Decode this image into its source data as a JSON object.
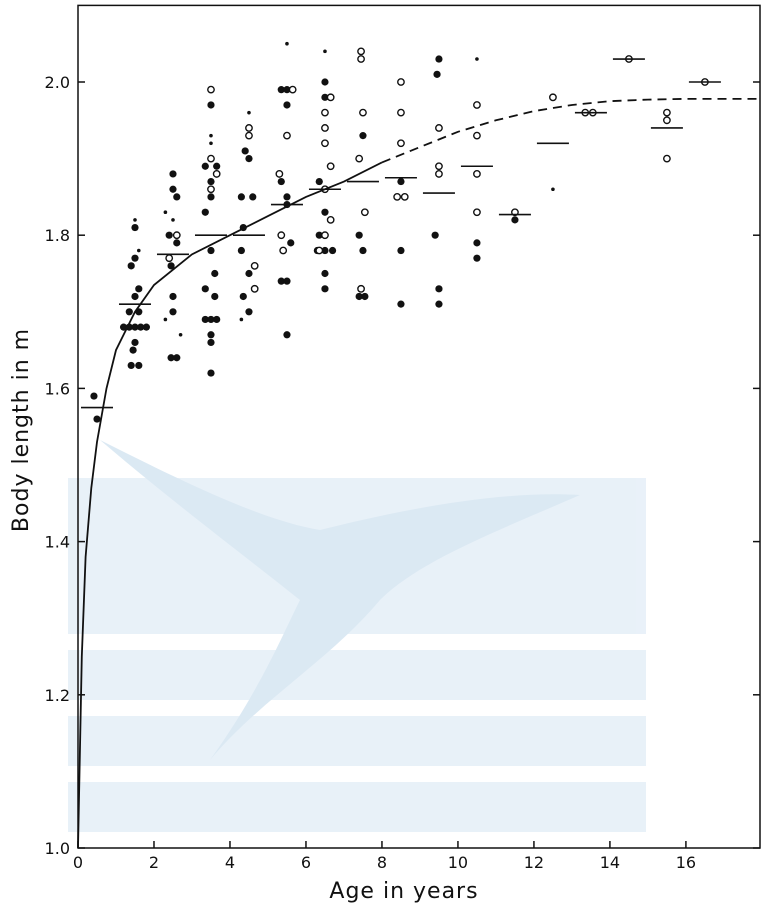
{
  "chart_data": {
    "type": "scatter",
    "xlabel": "Age in years",
    "ylabel": "Body length in m",
    "xlim": [
      0,
      17.95
    ],
    "ylim": [
      1.0,
      2.1
    ],
    "xticks": [
      0,
      2,
      4,
      6,
      8,
      10,
      12,
      14,
      16
    ],
    "yticks": [
      {
        "value": 1.0,
        "label": "1.0"
      },
      {
        "value": 1.2,
        "label": "1.2"
      },
      {
        "value": 1.4,
        "label": "1.4"
      },
      {
        "value": 1.6,
        "label": "1.6"
      },
      {
        "value": 1.8,
        "label": "1.8"
      },
      {
        "value": 2.0,
        "label": "2.0"
      }
    ],
    "series": [
      {
        "marker": "filled",
        "color": "#111111",
        "x": [
          0.42,
          0.5,
          1.2,
          1.35,
          1.5,
          1.65,
          1.8,
          1.5,
          1.5,
          1.4,
          1.6,
          1.5,
          1.35,
          1.6,
          1.45,
          1.4,
          1.6,
          1.5,
          2.5,
          2.5,
          2.6,
          2.4,
          2.6,
          2.45,
          2.5,
          2.5,
          2.45,
          2.6,
          3.35,
          3.5,
          3.65,
          3.5,
          3.5,
          3.35,
          3.5,
          3.6,
          3.35,
          3.6,
          3.35,
          3.5,
          3.65,
          3.5,
          3.5,
          3.5,
          4.5,
          4.4,
          4.5,
          4.3,
          4.6,
          4.35,
          4.3,
          4.5,
          4.35,
          4.5,
          5.35,
          5.5,
          5.5,
          5.35,
          5.5,
          5.5,
          5.6,
          5.35,
          5.5,
          5.5,
          6.5,
          6.5,
          6.35,
          6.5,
          6.35,
          6.3,
          6.5,
          6.7,
          6.5,
          6.5,
          7.5,
          7.4,
          7.5,
          7.4,
          7.55,
          8.5,
          8.5,
          8.5,
          9.5,
          9.45,
          9.4,
          9.5,
          9.5,
          10.5,
          10.5,
          11.5
        ],
        "values": [
          1.59,
          1.56,
          1.68,
          1.68,
          1.68,
          1.68,
          1.68,
          1.81,
          1.77,
          1.76,
          1.73,
          1.72,
          1.7,
          1.7,
          1.65,
          1.63,
          1.63,
          1.66,
          1.88,
          1.86,
          1.85,
          1.8,
          1.79,
          1.76,
          1.72,
          1.7,
          1.64,
          1.64,
          1.89,
          1.97,
          1.89,
          1.87,
          1.85,
          1.83,
          1.78,
          1.75,
          1.73,
          1.72,
          1.69,
          1.69,
          1.69,
          1.67,
          1.66,
          1.62,
          1.94,
          1.91,
          1.9,
          1.85,
          1.85,
          1.81,
          1.78,
          1.75,
          1.72,
          1.7,
          1.99,
          1.99,
          1.97,
          1.87,
          1.85,
          1.84,
          1.79,
          1.74,
          1.74,
          1.67,
          2.0,
          1.98,
          1.87,
          1.83,
          1.8,
          1.78,
          1.78,
          1.78,
          1.75,
          1.73,
          1.93,
          1.8,
          1.78,
          1.72,
          1.72,
          1.87,
          1.78,
          1.71,
          2.03,
          2.01,
          1.8,
          1.73,
          1.71,
          1.79,
          1.77,
          1.82
        ]
      },
      {
        "marker": "open",
        "color": "#111111",
        "x": [
          2.6,
          2.4,
          3.5,
          3.5,
          3.65,
          3.5,
          4.5,
          4.5,
          4.65,
          4.65,
          5.5,
          5.65,
          5.3,
          5.35,
          5.4,
          6.65,
          6.5,
          6.5,
          6.5,
          6.65,
          6.5,
          6.65,
          6.5,
          6.35,
          7.45,
          7.45,
          7.5,
          7.4,
          7.55,
          7.45,
          8.5,
          8.5,
          8.5,
          8.4,
          8.6,
          9.5,
          9.5,
          9.5,
          10.5,
          10.5,
          10.5,
          10.5,
          11.5,
          12.5,
          13.35,
          13.55,
          14.5,
          15.5,
          15.5,
          15.5,
          16.5
        ],
        "values": [
          1.8,
          1.77,
          1.99,
          1.9,
          1.88,
          1.86,
          1.94,
          1.93,
          1.76,
          1.73,
          1.93,
          1.99,
          1.88,
          1.8,
          1.78,
          1.98,
          1.96,
          1.94,
          1.92,
          1.89,
          1.86,
          1.82,
          1.8,
          1.78,
          2.04,
          2.03,
          1.96,
          1.9,
          1.83,
          1.73,
          2.0,
          1.96,
          1.92,
          1.85,
          1.85,
          1.94,
          1.89,
          1.88,
          1.97,
          1.93,
          1.88,
          1.83,
          1.83,
          1.98,
          1.96,
          1.96,
          2.03,
          1.96,
          1.95,
          1.9,
          2.0
        ]
      },
      {
        "marker": "dot",
        "color": "#111111",
        "x": [
          1.5,
          1.6,
          2.3,
          2.5,
          2.3,
          2.7,
          3.5,
          3.5,
          4.5,
          4.3,
          5.5,
          5.5,
          6.5,
          10.5,
          12.5
        ],
        "values": [
          1.82,
          1.78,
          1.83,
          1.82,
          1.69,
          1.67,
          1.92,
          1.93,
          1.96,
          1.69,
          1.85,
          2.05,
          2.04,
          2.03,
          1.86
        ]
      },
      {
        "marker": "dash",
        "color": "#111111",
        "x": [
          0.5,
          1.5,
          2.5,
          3.5,
          4.5,
          5.5,
          6.5,
          7.5,
          8.5,
          9.5,
          10.5,
          11.5,
          12.5,
          13.5,
          14.5,
          15.5,
          16.5
        ],
        "values": [
          1.575,
          1.71,
          1.775,
          1.8,
          1.8,
          1.84,
          1.86,
          1.87,
          1.875,
          1.855,
          1.89,
          1.827,
          1.92,
          1.96,
          2.03,
          1.94,
          2.0
        ]
      },
      {
        "marker": "line",
        "color": "#111111",
        "x": [
          0,
          0.1,
          0.2,
          0.35,
          0.5,
          0.75,
          1,
          1.5,
          2,
          3,
          4,
          5,
          6,
          7,
          8
        ],
        "values": [
          1.0,
          1.25,
          1.38,
          1.47,
          1.53,
          1.6,
          1.65,
          1.7,
          1.735,
          1.775,
          1.8,
          1.825,
          1.85,
          1.87,
          1.895
        ]
      },
      {
        "marker": "dashed-line",
        "color": "#111111",
        "x": [
          8,
          9,
          10,
          11,
          12,
          13,
          14,
          15,
          16,
          17.95
        ],
        "values": [
          1.895,
          1.915,
          1.935,
          1.95,
          1.962,
          1.97,
          1.975,
          1.977,
          1.978,
          1.978
        ]
      }
    ]
  }
}
